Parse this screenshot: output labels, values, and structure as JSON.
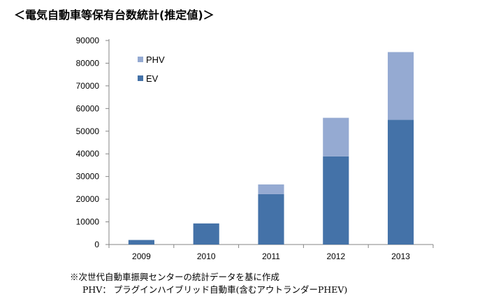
{
  "title": "＜電気自動車等保有台数統計(推定値)＞",
  "notes": [
    "※次世代自動車振興センターの統計データを基に作成",
    "PHV： プラグインハイブリッド自動車(含むアウトランダーPHEV)"
  ],
  "colors": {
    "EV": "#4472a8",
    "PHV": "#95aad2"
  },
  "chart_data": {
    "type": "bar",
    "stacked": true,
    "categories": [
      "2009",
      "2010",
      "2011",
      "2012",
      "2013"
    ],
    "series": [
      {
        "name": "EV",
        "values": [
          2000,
          9300,
          22200,
          38900,
          55000
        ]
      },
      {
        "name": "PHV",
        "values": [
          0,
          0,
          4300,
          17000,
          29900
        ]
      }
    ],
    "legend_order": [
      "PHV",
      "EV"
    ],
    "ylim": [
      0,
      90000
    ],
    "yticks": [
      "0",
      "10000",
      "20000",
      "30000",
      "40000",
      "50000",
      "60000",
      "70000",
      "80000",
      "90000"
    ],
    "legend_placement": "top-left",
    "grid": false
  }
}
